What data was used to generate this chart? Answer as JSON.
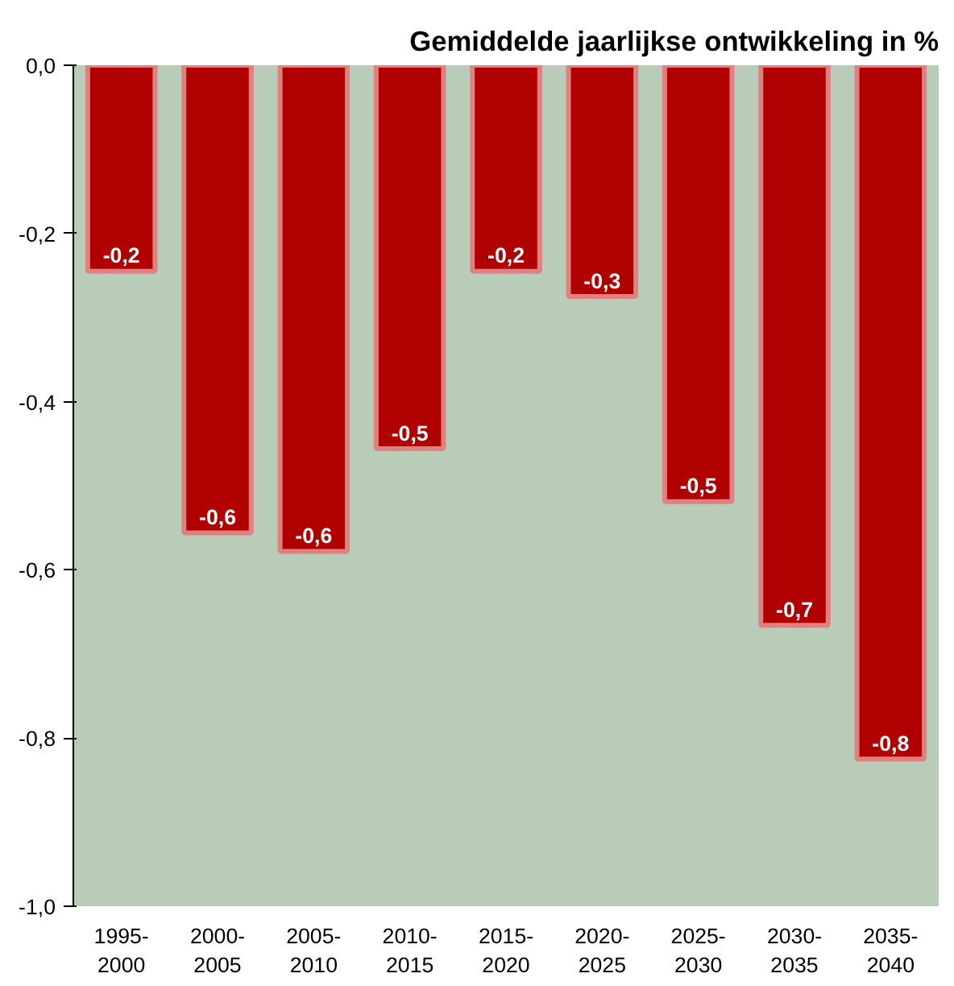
{
  "chart_data": {
    "type": "bar",
    "title": "Gemiddelde jaarlijkse ontwikkeling in %",
    "categories": [
      "1995-\n2000",
      "2000-\n2005",
      "2005-\n2010",
      "2010-\n2015",
      "2015-\n2020",
      "2020-\n2025",
      "2025-\n2030",
      "2030-\n2035",
      "2035-\n2040"
    ],
    "values": [
      -0.245,
      -0.556,
      -0.578,
      -0.456,
      -0.245,
      -0.275,
      -0.519,
      -0.666,
      -0.825
    ],
    "value_labels": [
      "-0,2",
      "-0,6",
      "-0,6",
      "-0,5",
      "-0,2",
      "-0,3",
      "-0,5",
      "-0,7",
      "-0,8"
    ],
    "color": "#b00000",
    "ylim": [
      -1.0,
      0.0
    ],
    "yticks": [
      {
        "value": 0.0,
        "label": "0,0"
      },
      {
        "value": -0.2,
        "label": "-0,2"
      },
      {
        "value": -0.4,
        "label": "-0,4"
      },
      {
        "value": -0.6,
        "label": "-0,6"
      },
      {
        "value": -0.8,
        "label": "-0,8"
      },
      {
        "value": -1.0,
        "label": "-1,0"
      }
    ],
    "grid": false
  }
}
